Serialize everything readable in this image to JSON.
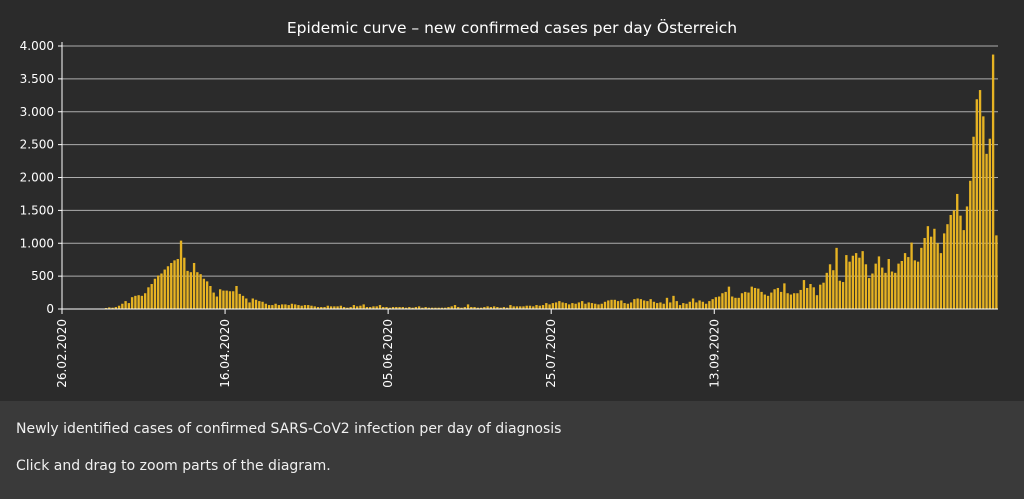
{
  "caption": {
    "line1": "Newly identified cases of confirmed SARS-CoV2 infection per day of diagnosis",
    "line2": "Click and drag to zoom parts of the diagram."
  },
  "colors": {
    "bar": "#e6b323",
    "background": "#2b2b2b",
    "grid": "#d9d9d9",
    "text": "#ffffff",
    "caption_bg": "#3a3a3a"
  },
  "chart_data": {
    "type": "bar",
    "title": "Epidemic curve – new confirmed cases per day Österreich",
    "xlabel": "",
    "ylabel": "",
    "x_start": "26.02.2020",
    "x_tick_labels": [
      "26.02.2020",
      "16.04.2020",
      "05.06.2020",
      "25.07.2020",
      "13.09.2020"
    ],
    "y_ticks": [
      0,
      500,
      1000,
      1500,
      2000,
      2500,
      3000,
      3500,
      4000
    ],
    "y_tick_labels": [
      "0",
      "500",
      "1.000",
      "1.500",
      "2.000",
      "2.500",
      "3.000",
      "3.500",
      "4.000"
    ],
    "ylim": [
      0,
      4000
    ],
    "grid": true,
    "legend": "none",
    "values": [
      0,
      0,
      0,
      0,
      0,
      0,
      0,
      0,
      0,
      0,
      0,
      0,
      5,
      15,
      25,
      20,
      30,
      50,
      80,
      120,
      90,
      180,
      200,
      210,
      200,
      240,
      330,
      380,
      460,
      510,
      540,
      600,
      650,
      700,
      740,
      760,
      1040,
      780,
      580,
      560,
      700,
      560,
      530,
      460,
      420,
      350,
      250,
      190,
      300,
      280,
      280,
      270,
      270,
      350,
      230,
      200,
      160,
      100,
      160,
      140,
      120,
      110,
      80,
      60,
      60,
      80,
      60,
      70,
      70,
      60,
      80,
      70,
      60,
      50,
      60,
      60,
      50,
      40,
      30,
      30,
      30,
      50,
      40,
      40,
      40,
      50,
      30,
      20,
      30,
      60,
      40,
      50,
      70,
      30,
      30,
      40,
      40,
      60,
      30,
      30,
      20,
      30,
      30,
      30,
      30,
      20,
      30,
      20,
      30,
      40,
      20,
      30,
      20,
      20,
      20,
      20,
      20,
      20,
      30,
      40,
      60,
      30,
      20,
      30,
      70,
      30,
      30,
      20,
      20,
      30,
      40,
      30,
      40,
      30,
      20,
      30,
      20,
      60,
      40,
      40,
      40,
      40,
      50,
      50,
      40,
      60,
      50,
      60,
      90,
      70,
      90,
      100,
      120,
      100,
      90,
      70,
      90,
      80,
      100,
      120,
      80,
      100,
      90,
      80,
      70,
      80,
      110,
      130,
      140,
      140,
      120,
      130,
      90,
      80,
      100,
      150,
      160,
      150,
      130,
      120,
      150,
      110,
      90,
      100,
      80,
      170,
      100,
      200,
      120,
      60,
      90,
      80,
      110,
      160,
      100,
      130,
      110,
      80,
      120,
      150,
      180,
      190,
      240,
      260,
      340,
      190,
      170,
      170,
      240,
      260,
      250,
      340,
      320,
      310,
      260,
      220,
      200,
      250,
      300,
      320,
      260,
      390,
      240,
      220,
      240,
      240,
      290,
      440,
      320,
      380,
      330,
      210,
      370,
      400,
      550,
      680,
      590,
      930,
      430,
      410,
      820,
      720,
      810,
      850,
      780,
      880,
      680,
      470,
      540,
      690,
      800,
      630,
      550,
      760,
      570,
      550,
      690,
      730,
      850,
      790,
      1010,
      740,
      720,
      930,
      1080,
      1260,
      1100,
      1220,
      1000,
      850,
      1150,
      1290,
      1430,
      1500,
      1750,
      1420,
      1200,
      1560,
      1950,
      2620,
      3190,
      3330,
      2930,
      2360,
      2590,
      3870,
      1120
    ]
  }
}
